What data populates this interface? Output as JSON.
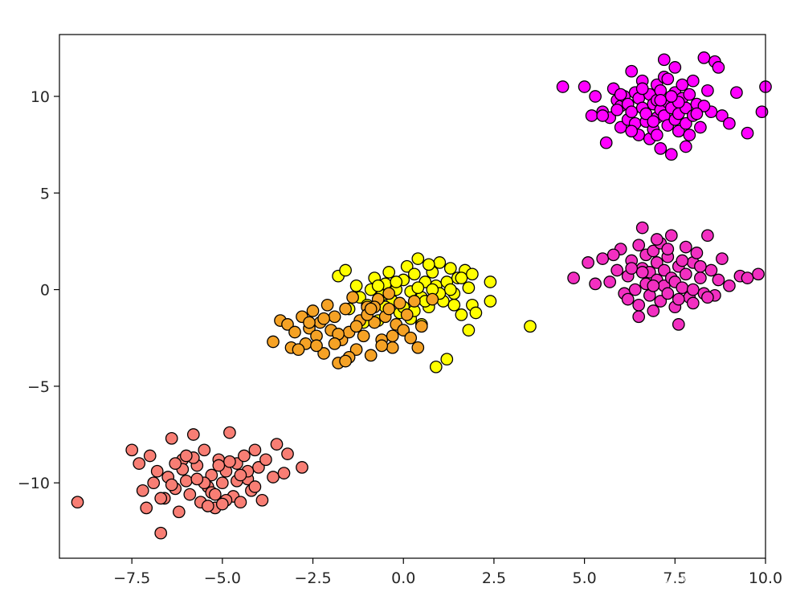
{
  "chart_data": {
    "type": "scatter",
    "title": "",
    "xlabel": "",
    "ylabel": "",
    "xlim": [
      -9.5,
      10.0
    ],
    "ylim": [
      -13.9,
      13.2
    ],
    "grid": false,
    "legend": "none",
    "x_ticks": [
      -7.5,
      -5.0,
      -2.5,
      0.0,
      2.5,
      5.0,
      7.5,
      10.0
    ],
    "x_tick_labels": [
      "−7.5",
      "−5.0",
      "−2.5",
      "0.0",
      "2.5",
      "5.0",
      "7.5",
      "10.0"
    ],
    "y_ticks": [
      10,
      5,
      0,
      -5,
      -10
    ],
    "y_tick_labels": [
      "10",
      "5",
      "0",
      "−5",
      "−10"
    ],
    "marker_edge_color": "#000000",
    "series": [
      {
        "color": "#ff00ff",
        "x": [
          4.4,
          5.0,
          5.2,
          5.3,
          5.5,
          5.6,
          5.7,
          5.8,
          5.9,
          6.0,
          6.0,
          6.1,
          6.2,
          6.2,
          6.3,
          6.3,
          6.4,
          6.4,
          6.5,
          6.5,
          6.6,
          6.6,
          6.7,
          6.7,
          6.8,
          6.8,
          6.9,
          6.9,
          7.0,
          7.0,
          7.0,
          7.1,
          7.1,
          7.1,
          7.2,
          7.2,
          7.3,
          7.3,
          7.3,
          7.4,
          7.4,
          7.5,
          7.5,
          7.5,
          7.6,
          7.6,
          7.7,
          7.7,
          7.8,
          7.8,
          7.9,
          7.9,
          8.0,
          8.0,
          8.1,
          8.2,
          8.3,
          8.4,
          8.5,
          8.6,
          8.8,
          9.0,
          9.2,
          9.5,
          10.0,
          9.9,
          5.5,
          6.0,
          7.2,
          7.6,
          8.3,
          7.0,
          6.6,
          7.8,
          8.7,
          5.9,
          6.9,
          7.4,
          8.1,
          6.3,
          7.1
        ],
        "y": [
          10.5,
          10.5,
          9.0,
          10.0,
          9.2,
          7.6,
          8.9,
          10.4,
          9.8,
          8.4,
          9.5,
          10.0,
          8.8,
          9.6,
          11.3,
          9.2,
          10.2,
          8.6,
          9.9,
          8.0,
          9.4,
          10.8,
          8.7,
          9.1,
          10.1,
          7.8,
          9.6,
          8.3,
          9.8,
          10.6,
          8.9,
          9.3,
          7.3,
          10.3,
          9.0,
          11.0,
          8.5,
          9.7,
          10.9,
          7.0,
          9.4,
          8.8,
          10.2,
          11.5,
          9.1,
          8.2,
          9.9,
          10.6,
          8.6,
          9.4,
          10.1,
          8.0,
          9.0,
          10.8,
          9.6,
          8.4,
          12.0,
          10.3,
          9.2,
          11.8,
          9.0,
          8.6,
          10.2,
          8.1,
          10.5,
          9.2,
          9.0,
          10.1,
          11.9,
          9.7,
          9.5,
          8.0,
          10.4,
          7.4,
          11.5,
          9.3,
          8.7,
          10.0,
          9.1,
          8.2,
          9.8
        ]
      },
      {
        "color": "#f22fc1",
        "x": [
          4.7,
          5.1,
          5.3,
          5.5,
          5.7,
          5.9,
          6.0,
          6.1,
          6.2,
          6.3,
          6.4,
          6.5,
          6.5,
          6.6,
          6.6,
          6.7,
          6.7,
          6.8,
          6.8,
          6.9,
          6.9,
          7.0,
          7.0,
          7.1,
          7.1,
          7.2,
          7.2,
          7.3,
          7.3,
          7.4,
          7.4,
          7.5,
          7.5,
          7.6,
          7.6,
          7.7,
          7.8,
          7.8,
          7.9,
          8.0,
          8.0,
          8.1,
          8.2,
          8.3,
          8.4,
          8.5,
          8.6,
          8.7,
          8.8,
          9.0,
          9.3,
          9.5,
          9.8,
          6.5,
          7.6,
          6.2,
          7.0,
          8.2,
          5.8,
          6.9,
          7.7,
          8.4,
          6.3,
          7.3,
          8.0,
          6.6
        ],
        "y": [
          0.6,
          1.4,
          0.3,
          1.6,
          0.4,
          1.0,
          2.1,
          -0.2,
          0.7,
          1.5,
          0.0,
          2.3,
          -0.8,
          1.1,
          3.2,
          0.3,
          1.8,
          -0.3,
          0.9,
          2.0,
          -1.1,
          0.5,
          1.4,
          -0.6,
          2.4,
          0.2,
          1.0,
          -0.2,
          1.7,
          0.6,
          2.8,
          -0.9,
          0.4,
          1.2,
          -1.8,
          0.1,
          2.2,
          0.8,
          -0.4,
          1.4,
          0.0,
          1.9,
          0.6,
          -0.2,
          2.8,
          1.0,
          -0.3,
          0.5,
          1.6,
          0.2,
          0.7,
          0.6,
          0.8,
          -1.4,
          -0.5,
          -0.5,
          2.6,
          1.2,
          1.8,
          0.2,
          1.5,
          -0.4,
          1.1,
          2.1,
          -0.7,
          0.9
        ]
      },
      {
        "color": "#ffff00",
        "x": [
          -1.8,
          -1.6,
          -1.5,
          -1.3,
          -1.2,
          -1.0,
          -0.9,
          -0.8,
          -0.7,
          -0.6,
          -0.5,
          -0.4,
          -0.3,
          -0.2,
          -0.1,
          0.0,
          0.1,
          0.2,
          0.3,
          0.4,
          0.5,
          0.6,
          0.7,
          0.8,
          0.9,
          1.0,
          1.1,
          1.2,
          1.3,
          1.4,
          1.5,
          1.6,
          1.7,
          1.8,
          1.9,
          2.0,
          2.4,
          2.4,
          3.5,
          1.2,
          0.9,
          -0.5,
          0.2,
          0.7,
          1.3,
          -0.2,
          1.8,
          0.5,
          1.0,
          0.0,
          1.6,
          0.3,
          -1.1,
          0.8,
          1.4,
          -0.7,
          1.9,
          0.4,
          0.6
        ],
        "y": [
          0.7,
          1.0,
          -1.0,
          0.2,
          -0.4,
          -0.8,
          0.0,
          0.6,
          -1.6,
          -0.3,
          0.3,
          0.9,
          -0.6,
          0.0,
          -1.2,
          0.5,
          1.2,
          -0.1,
          0.8,
          1.6,
          -1.8,
          0.4,
          -0.9,
          0.9,
          0.2,
          1.4,
          -0.6,
          0.4,
          1.1,
          -0.2,
          0.6,
          -1.3,
          1.0,
          0.1,
          -0.8,
          -1.2,
          0.4,
          -0.6,
          -1.9,
          -3.6,
          -4.0,
          -0.9,
          -1.5,
          1.3,
          0.0,
          0.4,
          -2.1,
          -0.4,
          -0.2,
          -0.9,
          0.6,
          -1.1,
          -1.7,
          0.0,
          -0.8,
          0.2,
          0.8,
          0.1,
          -0.6
        ]
      },
      {
        "color": "#f5a225",
        "x": [
          -3.6,
          -3.4,
          -3.2,
          -3.1,
          -3.0,
          -2.8,
          -2.7,
          -2.6,
          -2.5,
          -2.4,
          -2.3,
          -2.2,
          -2.1,
          -2.0,
          -1.9,
          -1.8,
          -1.7,
          -1.6,
          -1.5,
          -1.4,
          -1.3,
          -1.2,
          -1.1,
          -1.0,
          -0.9,
          -0.8,
          -0.7,
          -0.6,
          -0.5,
          -0.4,
          -0.3,
          -0.2,
          -0.1,
          0.0,
          0.1,
          0.3,
          0.5,
          0.8,
          -2.4,
          -1.8,
          -1.0,
          -0.6,
          -2.2,
          -1.5,
          -0.8,
          0.2,
          -2.9,
          -1.3,
          -0.4,
          -1.9,
          -0.9,
          0.4,
          -2.6,
          -1.6,
          -0.3
        ],
        "y": [
          -2.7,
          -1.6,
          -1.8,
          -3.0,
          -2.2,
          -1.4,
          -2.8,
          -2.0,
          -1.1,
          -2.4,
          -1.7,
          -3.3,
          -0.8,
          -2.1,
          -1.4,
          -3.8,
          -2.6,
          -1.0,
          -2.2,
          -0.4,
          -3.1,
          -1.6,
          -2.4,
          -0.9,
          -3.4,
          -1.7,
          -0.5,
          -2.6,
          -1.4,
          -0.2,
          -3.0,
          -1.8,
          -0.7,
          -2.1,
          -1.3,
          -0.6,
          -1.9,
          -0.5,
          -2.9,
          -2.3,
          -1.3,
          -2.9,
          -1.5,
          -3.5,
          -0.9,
          -2.5,
          -3.1,
          -1.9,
          -1.0,
          -2.8,
          -1.0,
          -3.0,
          -1.7,
          -3.7,
          -2.4
        ]
      },
      {
        "color": "#f87e74",
        "x": [
          -9.0,
          -7.5,
          -7.3,
          -7.2,
          -7.1,
          -7.0,
          -6.9,
          -6.8,
          -6.7,
          -6.6,
          -6.5,
          -6.4,
          -6.3,
          -6.2,
          -6.1,
          -6.0,
          -5.9,
          -5.8,
          -5.7,
          -5.6,
          -5.5,
          -5.4,
          -5.3,
          -5.2,
          -5.1,
          -5.0,
          -4.9,
          -4.8,
          -4.7,
          -4.6,
          -4.5,
          -4.4,
          -4.3,
          -4.2,
          -4.1,
          -4.0,
          -3.9,
          -3.8,
          -3.6,
          -3.5,
          -3.3,
          -3.2,
          -2.8,
          -6.7,
          -5.3,
          -4.6,
          -5.8,
          -4.9,
          -6.1,
          -5.5,
          -4.3,
          -5.0,
          -6.4,
          -5.7,
          -4.8,
          -5.2,
          -6.0,
          -4.5,
          -5.4,
          -6.3,
          -4.1,
          -5.1
        ],
        "y": [
          -11.0,
          -8.3,
          -9.0,
          -10.4,
          -11.3,
          -8.6,
          -10.0,
          -9.4,
          -12.6,
          -10.8,
          -9.7,
          -7.7,
          -10.3,
          -11.5,
          -8.8,
          -9.9,
          -10.6,
          -7.5,
          -9.1,
          -11.0,
          -8.3,
          -10.2,
          -9.6,
          -11.3,
          -8.8,
          -10.0,
          -9.4,
          -7.4,
          -10.7,
          -9.0,
          -11.0,
          -8.6,
          -9.8,
          -10.4,
          -8.3,
          -9.2,
          -10.9,
          -8.8,
          -9.7,
          -8.0,
          -9.5,
          -8.5,
          -9.2,
          -10.8,
          -10.5,
          -9.9,
          -8.7,
          -10.9,
          -9.3,
          -10.0,
          -9.4,
          -11.1,
          -10.1,
          -9.8,
          -8.9,
          -10.6,
          -8.6,
          -9.6,
          -11.2,
          -9.0,
          -10.2,
          -9.1
        ]
      }
    ]
  },
  "watermark": {
    "icon": "wechat-icon",
    "text": "软件测试培训"
  }
}
